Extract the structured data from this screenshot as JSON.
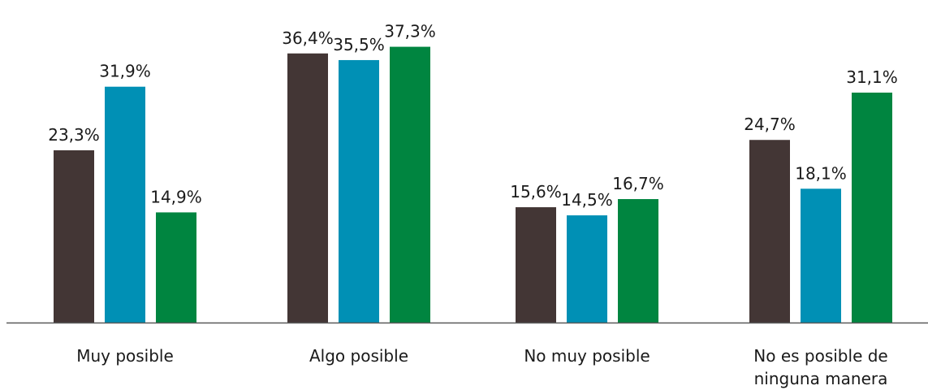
{
  "chart_data": {
    "type": "bar",
    "categories": [
      [
        "Muy posible"
      ],
      [
        "Algo posible"
      ],
      [
        "No muy posible"
      ],
      [
        "No es posible de",
        "ninguna manera"
      ]
    ],
    "series": [
      {
        "color": "#433635",
        "values": [
          23.3,
          36.4,
          15.6,
          24.7
        ],
        "labels": [
          "23,3%",
          "36,4%",
          "15,6%",
          "24,7%"
        ]
      },
      {
        "color": "#0090b5",
        "values": [
          31.9,
          35.5,
          14.5,
          18.1
        ],
        "labels": [
          "31,9%",
          "35,5%",
          "14,5%",
          "18,1%"
        ]
      },
      {
        "color": "#008540",
        "values": [
          14.9,
          37.3,
          16.7,
          31.1
        ],
        "labels": [
          "14,9%",
          "37,3%",
          "16,7%",
          "31,1%"
        ]
      }
    ],
    "ylim": [
      0,
      40
    ],
    "grid": false,
    "axis_color": "#595959"
  }
}
